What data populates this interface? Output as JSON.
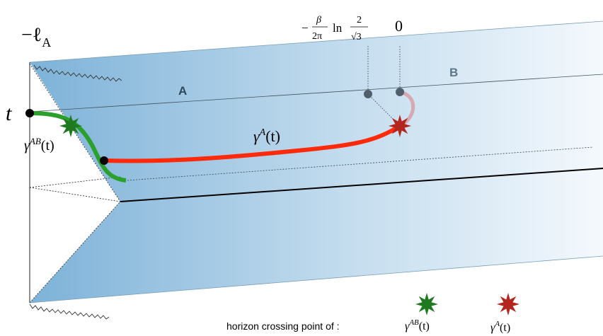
{
  "labels": {
    "minus_ell": {
      "text": "−ℓ",
      "sub": "A"
    },
    "t": "t",
    "region_a": "A",
    "region_b": "B",
    "gamma_a": {
      "symbol": "γ",
      "sup": "A",
      "arg": "(t)"
    },
    "gamma_ab": {
      "symbol": "γ",
      "sup": "AB",
      "arg": "(t)"
    },
    "crossing": {
      "sign": "−",
      "num": "β",
      "den": "2π",
      "ln": "ln",
      "num2": "2",
      "den2": "√3"
    },
    "zero": "0"
  },
  "legend": {
    "text": "horizon crossing point of :",
    "items": [
      {
        "symbol": "γ",
        "sup": "AB",
        "arg": "(t)",
        "color": "#1f7a1f"
      },
      {
        "symbol": "γ",
        "sup": "A",
        "arg": "(t)",
        "color": "#b3261e"
      }
    ]
  }
}
